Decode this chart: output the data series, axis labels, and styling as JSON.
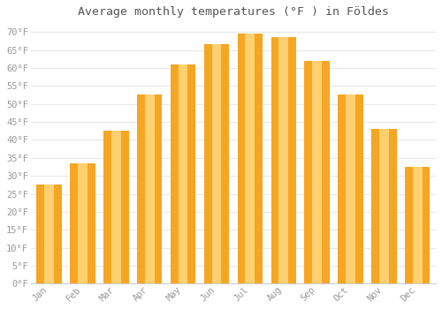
{
  "title": "Average monthly temperatures (°F ) in Földes",
  "months": [
    "Jan",
    "Feb",
    "Mar",
    "Apr",
    "May",
    "Jun",
    "Jul",
    "Aug",
    "Sep",
    "Oct",
    "Nov",
    "Dec"
  ],
  "values": [
    27.5,
    33.5,
    42.5,
    52.5,
    61.0,
    66.5,
    69.5,
    68.5,
    62.0,
    52.5,
    43.0,
    32.5
  ],
  "bar_color_outer": "#F5A623",
  "bar_color_inner": "#FFD070",
  "ylim": [
    0,
    72
  ],
  "yticks": [
    0,
    5,
    10,
    15,
    20,
    25,
    30,
    35,
    40,
    45,
    50,
    55,
    60,
    65,
    70
  ],
  "background_color": "#ffffff",
  "grid_color": "#e8e8e8",
  "tick_label_color": "#999999",
  "title_color": "#555555",
  "title_fontsize": 9.5,
  "tick_fontsize": 7.5,
  "bar_width": 0.75
}
